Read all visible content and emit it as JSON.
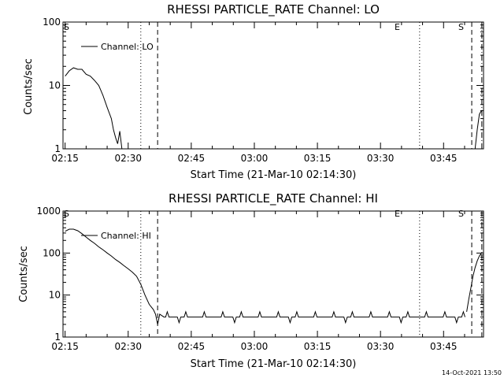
{
  "chart_data": [
    {
      "type": "line",
      "title": "RHESSI PARTICLE_RATE Channel: LO",
      "xlabel": "Start Time (21-Mar-10 02:14:30)",
      "ylabel": "Counts/sec",
      "yscale": "log",
      "ylim": [
        1,
        100
      ],
      "xlim_minutes": [
        0,
        100
      ],
      "x_tick_labels": [
        "02:15",
        "02:30",
        "02:45",
        "03:00",
        "03:15",
        "03:30",
        "03:45"
      ],
      "x_tick_minutes": [
        0.5,
        15.5,
        30.5,
        45.5,
        60.5,
        75.5,
        90.5
      ],
      "y_tick_labels": [
        "1",
        "10",
        "100"
      ],
      "y_tick_values": [
        1,
        10,
        100
      ],
      "grid": false,
      "legend": {
        "position": "top-left",
        "entries": [
          "Channel: LO"
        ]
      },
      "annotations": [
        {
          "text": "S",
          "x_minute": 0.5
        },
        {
          "text": "E",
          "x_minute": 84.5
        },
        {
          "text": "S",
          "x_minute": 97.5
        }
      ],
      "vlines": [
        {
          "x_minute": 18.5,
          "style": "dotted"
        },
        {
          "x_minute": 22.5,
          "style": "dashed"
        },
        {
          "x_minute": 84.8,
          "style": "dotted"
        },
        {
          "x_minute": 97.2,
          "style": "dashed"
        },
        {
          "x_minute": 99.6,
          "style": "dashdot"
        }
      ],
      "series": [
        {
          "segments": [
            {
              "x": [
                0.5,
                1.5,
                2.5,
                3.5,
                4.5,
                5.5,
                6.5,
                7.5,
                8.5,
                9.5,
                10.5,
                11.5,
                12.0,
                12.5,
                13.0,
                13.5,
                14.0
              ],
              "y": [
                14,
                17,
                19,
                18,
                18,
                15,
                14,
                12,
                10,
                7,
                4.5,
                3,
                2,
                1.5,
                1.2,
                1.9,
                1.0
              ]
            },
            {
              "x": [
                98.0,
                98.5,
                99.0,
                99.5
              ],
              "y": [
                1.0,
                2.0,
                3.5,
                4.0
              ]
            }
          ]
        }
      ]
    },
    {
      "type": "line",
      "title": "RHESSI PARTICLE_RATE Channel: HI",
      "xlabel": "Start Time (21-Mar-10 02:14:30)",
      "ylabel": "Counts/sec",
      "yscale": "log",
      "ylim": [
        1,
        1000
      ],
      "xlim_minutes": [
        0,
        100
      ],
      "x_tick_labels": [
        "02:15",
        "02:30",
        "02:45",
        "03:00",
        "03:15",
        "03:30",
        "03:45"
      ],
      "x_tick_minutes": [
        0.5,
        15.5,
        30.5,
        45.5,
        60.5,
        75.5,
        90.5
      ],
      "y_tick_labels": [
        "1",
        "10",
        "100",
        "1000"
      ],
      "y_tick_values": [
        1,
        10,
        100,
        1000
      ],
      "grid": false,
      "legend": {
        "position": "top-left",
        "entries": [
          "Channel: HI"
        ]
      },
      "annotations": [
        {
          "text": "S",
          "x_minute": 0.5
        },
        {
          "text": "E",
          "x_minute": 84.5
        },
        {
          "text": "S",
          "x_minute": 97.5
        }
      ],
      "vlines": [
        {
          "x_minute": 18.5,
          "style": "dotted"
        },
        {
          "x_minute": 22.5,
          "style": "dashed"
        },
        {
          "x_minute": 84.8,
          "style": "dotted"
        },
        {
          "x_minute": 97.2,
          "style": "dashed"
        },
        {
          "x_minute": 99.6,
          "style": "dashdot"
        }
      ],
      "series": [
        {
          "segments": [
            {
              "x": [
                0.5,
                1.5,
                2.5,
                3.5,
                4.5,
                5.5,
                6.5,
                7.5,
                8.5,
                9.5,
                10.5,
                11.5,
                12.5,
                13.5,
                14.5,
                15.5,
                16.5,
                17.5,
                18.5,
                19.5,
                20.5,
                21.5,
                22.0,
                22.5,
                23.0,
                24.0
              ],
              "y": [
                330,
                370,
                370,
                340,
                290,
                240,
                200,
                170,
                140,
                120,
                100,
                85,
                70,
                60,
                50,
                42,
                35,
                28,
                18,
                10,
                6,
                4.5,
                3.5,
                2.0,
                3.5,
                3.0
              ],
              "baseline_from": 24.0,
              "baseline_to": 96.0,
              "baseline_value": 3.0
            },
            {
              "x": [
                96.0,
                96.5,
                97.0,
                97.5,
                98.0,
                98.5,
                99.0,
                99.5
              ],
              "y": [
                4.0,
                8,
                15,
                28,
                45,
                65,
                85,
                100
              ]
            }
          ]
        }
      ]
    }
  ],
  "footer": {
    "timestamp": "14-Oct-2021 13:50"
  }
}
